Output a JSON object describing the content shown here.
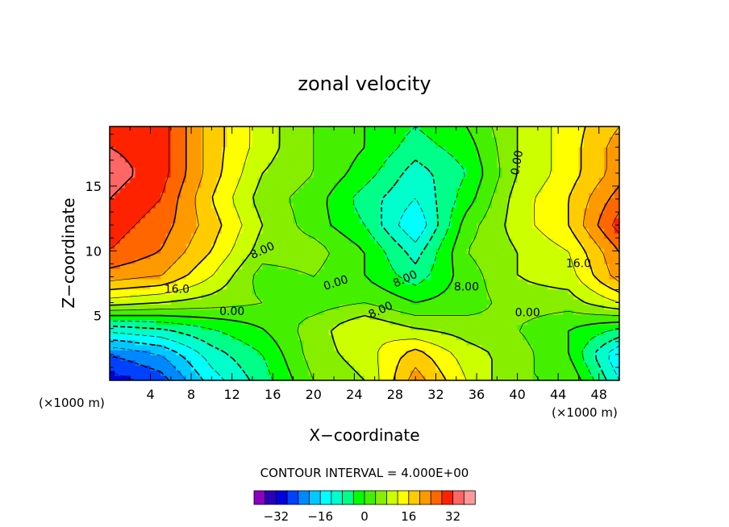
{
  "chart_data": {
    "type": "heatmap",
    "title": "zonal velocity",
    "xlabel": "X−coordinate",
    "ylabel": "Z−coordinate",
    "x_unit_left": "(×1000 m)",
    "x_unit_right": "(×1000 m)",
    "xlim": [
      0,
      50
    ],
    "ylim": [
      0,
      19.6
    ],
    "x_ticks": [
      "4",
      "8",
      "12",
      "16",
      "20",
      "24",
      "28",
      "32",
      "36",
      "40",
      "44",
      "48"
    ],
    "y_ticks": [
      "5",
      "10",
      "15"
    ],
    "contour_interval_label": "CONTOUR INTERVAL = 4.000E+00",
    "contour_labels": [
      "8.00",
      "8.00",
      "16.0",
      "0.00",
      "0.00",
      "8.00",
      "0.00",
      "8.00",
      "0.00",
      "16.0"
    ],
    "colorbar": {
      "ticks": [
        "−32",
        "−16",
        "0",
        "16",
        "32"
      ],
      "levels": [
        -36,
        -32,
        -28,
        -24,
        -20,
        -16,
        -12,
        -8,
        -4,
        0,
        4,
        8,
        12,
        16,
        20,
        24,
        28,
        32,
        36
      ],
      "colors": [
        "#8a00c0",
        "#2a00b8",
        "#0000e0",
        "#0040ff",
        "#0088ff",
        "#00c8ff",
        "#00ffff",
        "#00ffcc",
        "#00ff88",
        "#00ff00",
        "#44f000",
        "#88ee00",
        "#ccff00",
        "#ffff00",
        "#ffcc00",
        "#ff9900",
        "#ff6600",
        "#ff2200",
        "#ff6666",
        "#ff9999"
      ]
    },
    "x": [
      0,
      5,
      10,
      15,
      20,
      25,
      30,
      35,
      40,
      45,
      50
    ],
    "y": [
      0,
      2,
      4,
      6,
      8,
      10,
      12,
      14,
      16,
      18,
      19.6
    ],
    "values": [
      [
        -30,
        -26,
        -14,
        -6,
        4,
        8,
        22,
        12,
        4,
        4,
        -12
      ],
      [
        -24,
        -20,
        -10,
        -4,
        6,
        10,
        18,
        10,
        6,
        0,
        -16
      ],
      [
        -10,
        -8,
        -4,
        0,
        6,
        12,
        8,
        6,
        4,
        0,
        -4
      ],
      [
        10,
        8,
        6,
        4,
        2,
        4,
        0,
        2,
        6,
        6,
        12
      ],
      [
        22,
        20,
        12,
        2,
        4,
        0,
        -6,
        2,
        8,
        10,
        22
      ],
      [
        28,
        24,
        16,
        6,
        6,
        0,
        -10,
        4,
        8,
        12,
        24
      ],
      [
        30,
        26,
        18,
        8,
        2,
        -4,
        -16,
        2,
        10,
        16,
        30
      ],
      [
        32,
        28,
        16,
        6,
        2,
        -6,
        -12,
        -2,
        10,
        16,
        26
      ],
      [
        34,
        30,
        18,
        8,
        4,
        -2,
        -10,
        -4,
        8,
        14,
        22
      ],
      [
        32,
        30,
        18,
        10,
        4,
        0,
        -6,
        -2,
        8,
        14,
        22
      ],
      [
        30,
        30,
        18,
        10,
        4,
        0,
        -4,
        0,
        8,
        14,
        20
      ]
    ]
  }
}
